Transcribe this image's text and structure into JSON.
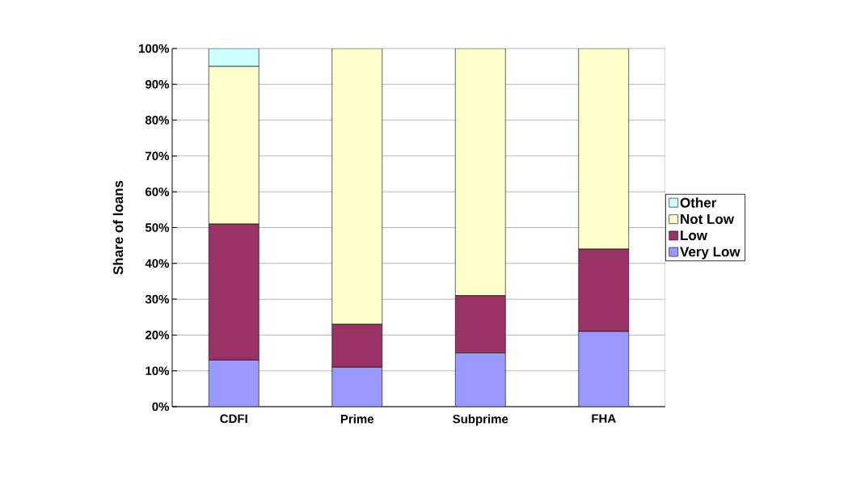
{
  "chart_data": {
    "type": "bar",
    "stacked": true,
    "ylabel": "Share of loans",
    "categories": [
      "CDFI",
      "Prime",
      "Subprime",
      "FHA"
    ],
    "series": [
      {
        "name": "Very Low",
        "color": "#9999ff",
        "values": [
          13,
          11,
          15,
          21
        ]
      },
      {
        "name": "Low",
        "color": "#993366",
        "values": [
          38,
          12,
          16,
          23
        ]
      },
      {
        "name": "Not Low",
        "color": "#ffffcc",
        "values": [
          44,
          77,
          69,
          56
        ]
      },
      {
        "name": "Other",
        "color": "#ccffff",
        "values": [
          5,
          0,
          0,
          0
        ]
      }
    ],
    "ylim": [
      0,
      100
    ],
    "yticks": [
      {
        "value": 0,
        "label": "0%"
      },
      {
        "value": 10,
        "label": "10%"
      },
      {
        "value": 20,
        "label": "20%"
      },
      {
        "value": 30,
        "label": "30%"
      },
      {
        "value": 40,
        "label": "40%"
      },
      {
        "value": 50,
        "label": "50%"
      },
      {
        "value": 60,
        "label": "60%"
      },
      {
        "value": 70,
        "label": "70%"
      },
      {
        "value": 80,
        "label": "80%"
      },
      {
        "value": 90,
        "label": "90%"
      },
      {
        "value": 100,
        "label": "100%"
      }
    ],
    "grid": "y",
    "legend": "right"
  }
}
